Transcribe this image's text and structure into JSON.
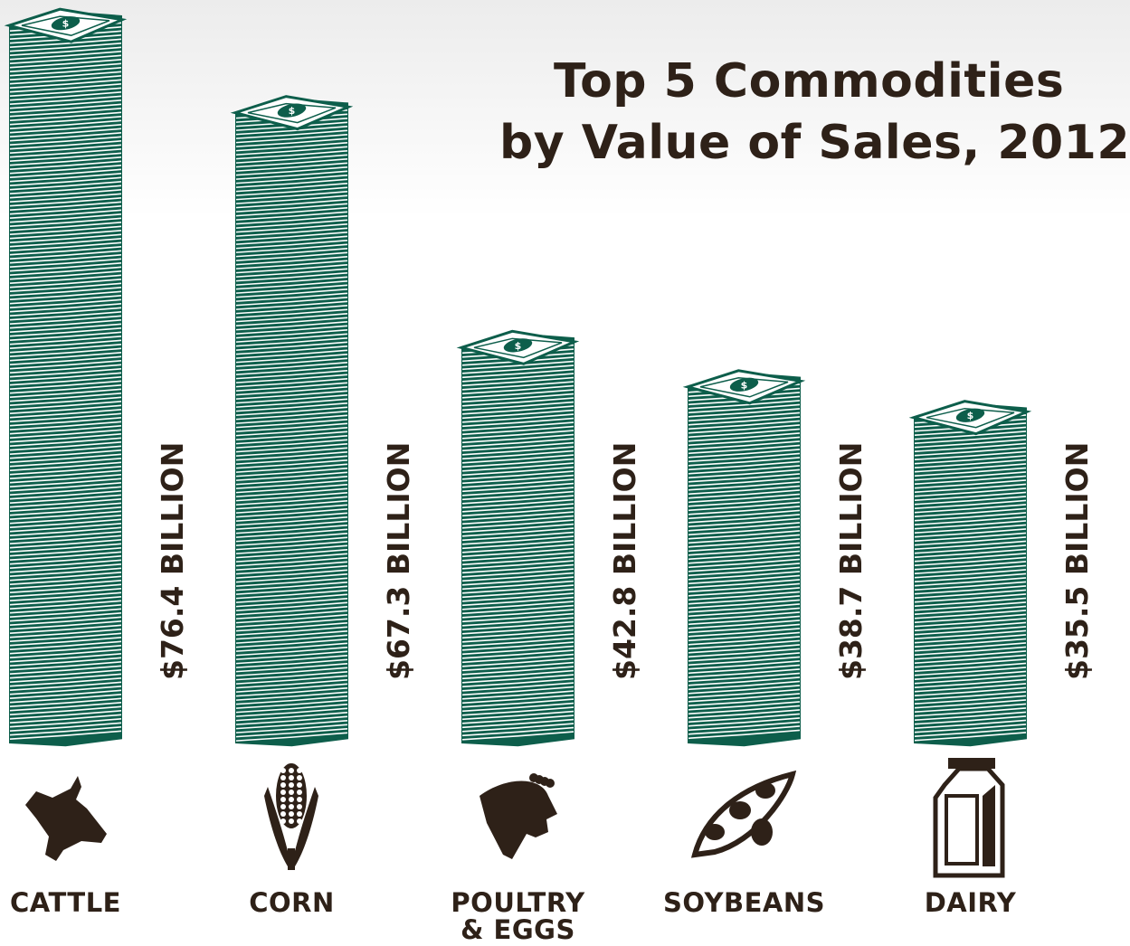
{
  "title": {
    "line1": "Top 5 Commodities",
    "line2": "by Value of Sales, 2012"
  },
  "colors": {
    "money": "#0d5e4b",
    "text": "#2e2118",
    "icon": "#2e2118"
  },
  "chart_data": {
    "type": "bar",
    "title": "Top 5 Commodities by Value of Sales, 2012",
    "categories": [
      "CATTLE",
      "CORN",
      "POULTRY & EGGS",
      "SOYBEANS",
      "DAIRY"
    ],
    "category_lines": [
      [
        "CATTLE"
      ],
      [
        "CORN"
      ],
      [
        "POULTRY",
        "& EGGS"
      ],
      [
        "SOYBEANS"
      ],
      [
        "DAIRY"
      ]
    ],
    "values": [
      76.4,
      67.3,
      42.8,
      38.7,
      35.5
    ],
    "value_labels": [
      "$76.4 BILLION",
      "$67.3 BILLION",
      "$42.8 BILLION",
      "$38.7 BILLION",
      "$35.5 BILLION"
    ],
    "unit": "billion USD",
    "icons": [
      "cow-icon",
      "corn-icon",
      "chicken-icon",
      "soybean-icon",
      "milk-carton-icon"
    ],
    "xlabel": "",
    "ylabel": "",
    "grid": false,
    "legend": "none"
  }
}
